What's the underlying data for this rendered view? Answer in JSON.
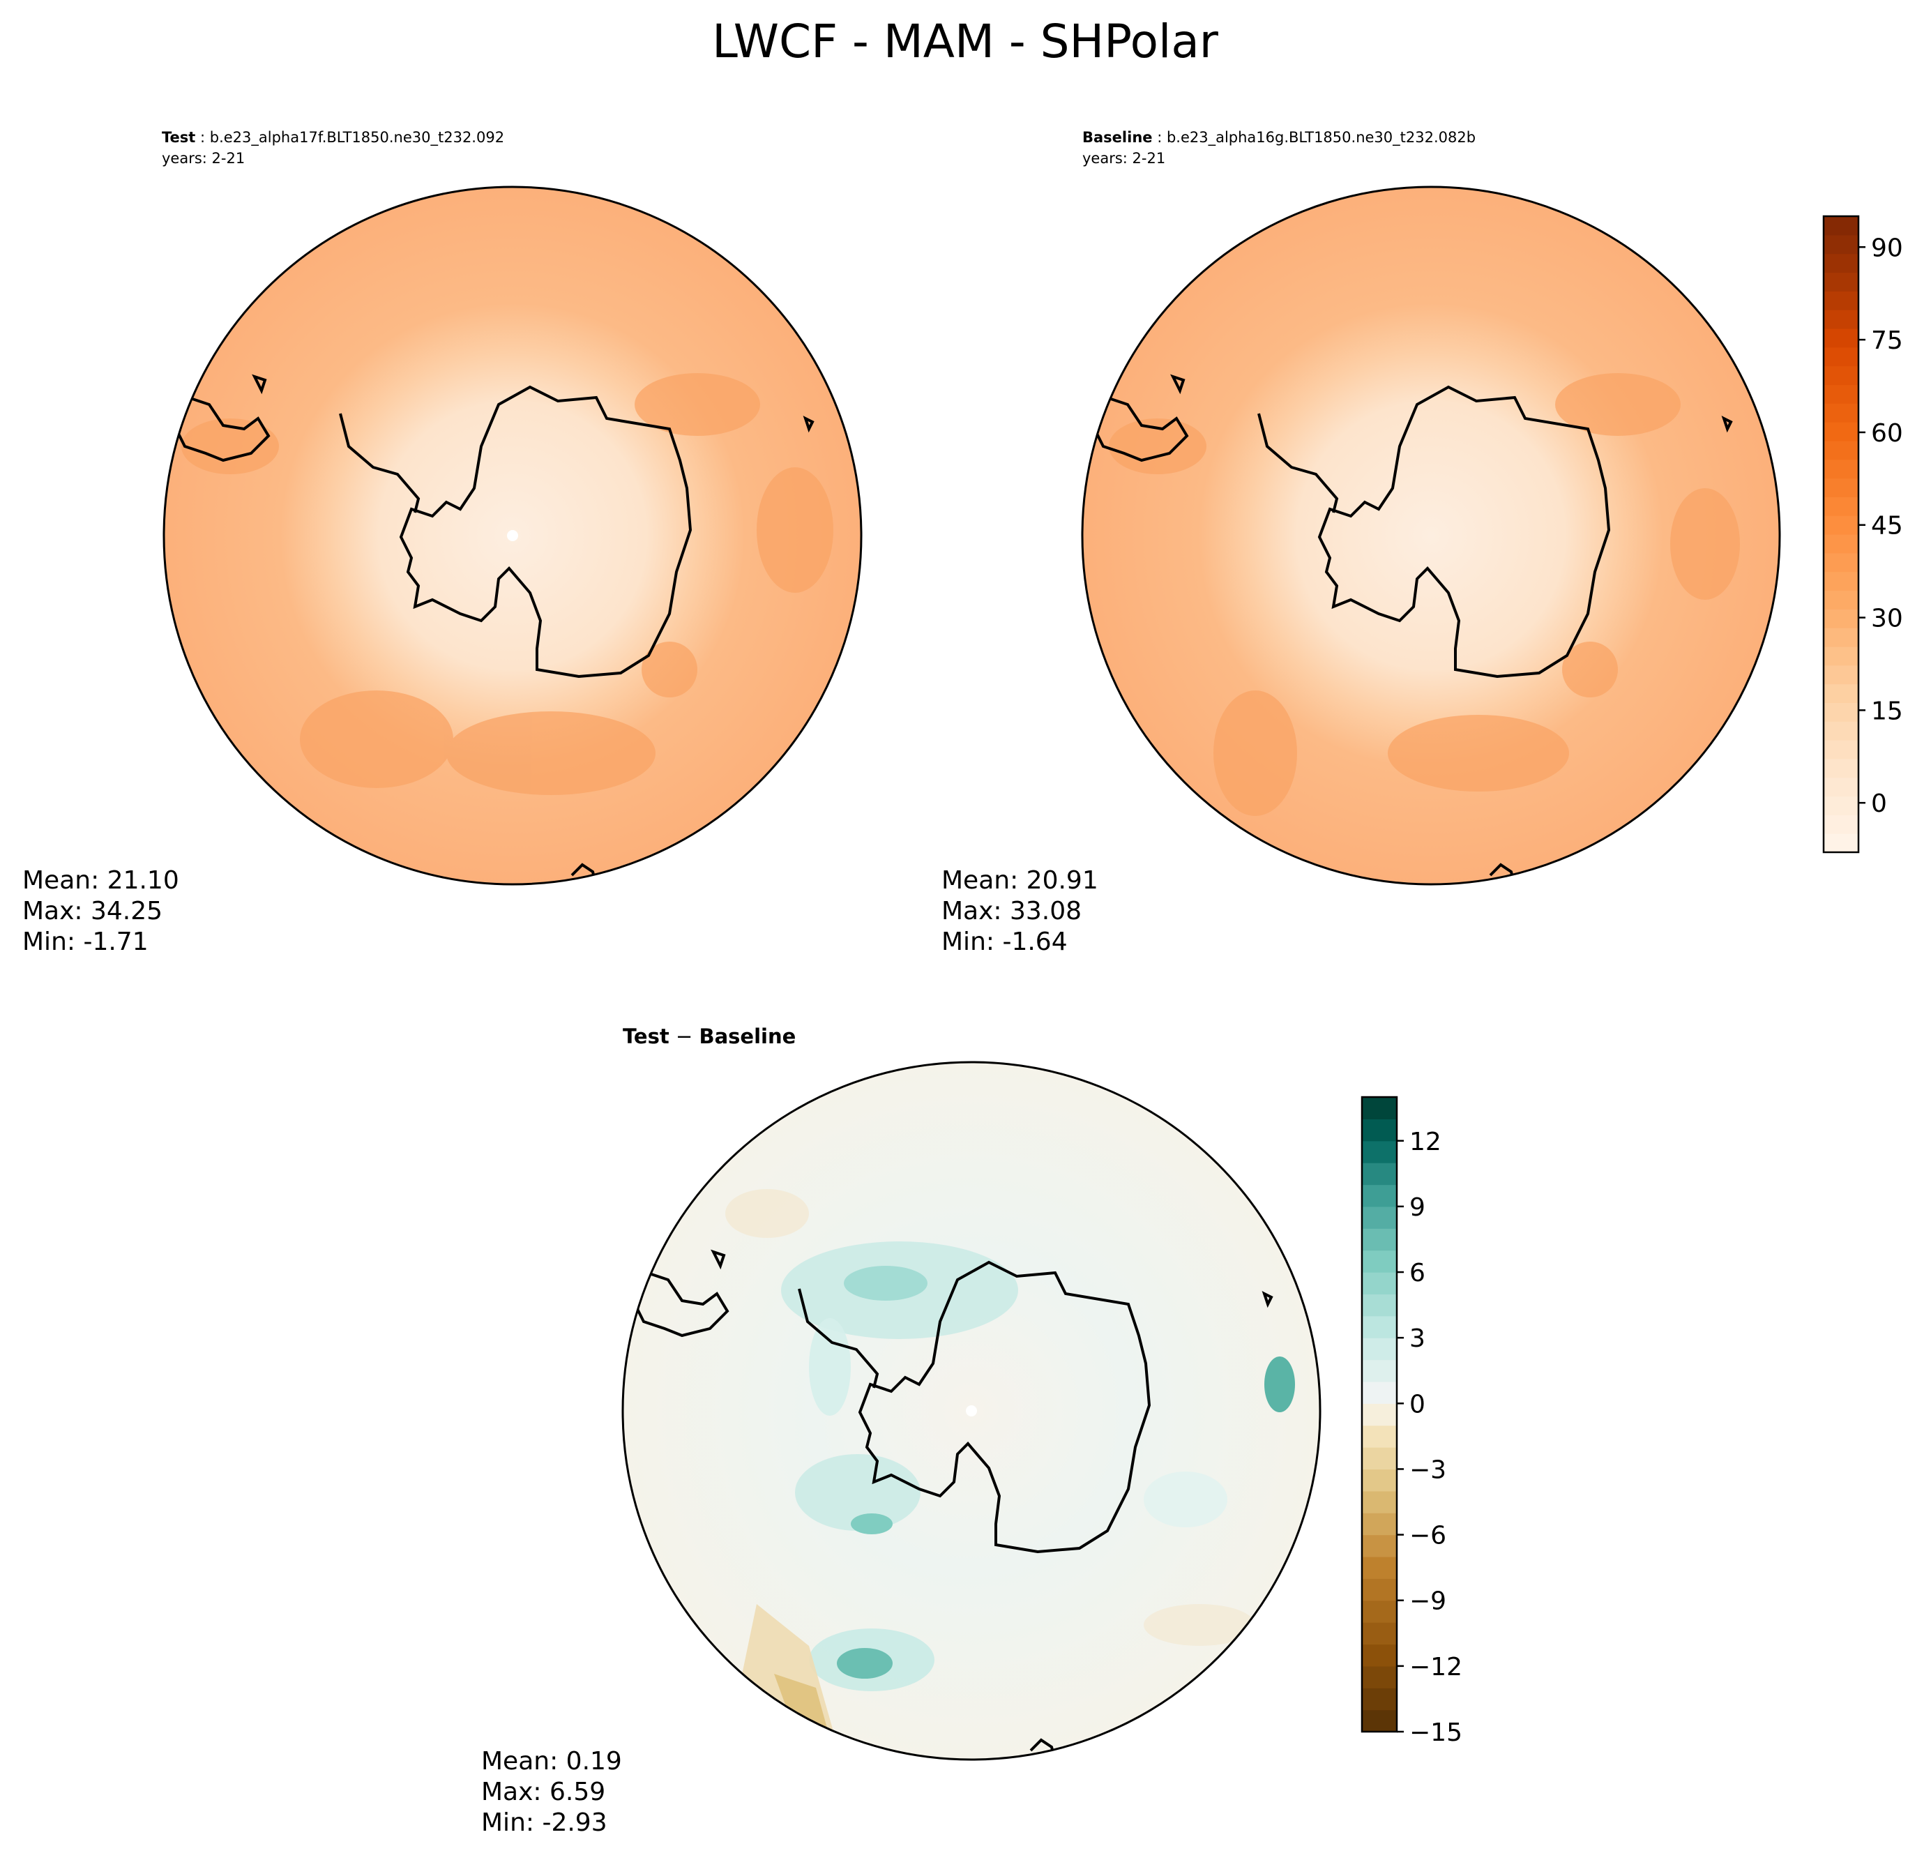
{
  "figure_title": "LWCF - MAM - SHPolar",
  "panels": {
    "test": {
      "label_bold": "Test",
      "case_name": " : b.e23_alpha17f.BLT1850.ne30_t232.092",
      "years": "years: 2-21",
      "mean": "Mean: 21.10",
      "max": "Max: 34.25",
      "min": "Min: -1.71"
    },
    "baseline": {
      "label_bold": "Baseline",
      "case_name": " : b.e23_alpha16g.BLT1850.ne30_t232.082b",
      "years": "years: 2-21",
      "mean": "Mean: 20.91",
      "max": "Max: 33.08",
      "min": "Min: -1.64"
    },
    "diff": {
      "title_left": "Test",
      "title_op": " − ",
      "title_right": "Baseline",
      "mean": "Mean:  0.19",
      "max": "Max:  6.59",
      "min": "Min: -2.93"
    }
  },
  "colors": {
    "oranges_low": "#fff5eb",
    "oranges_high": "#7f2704",
    "brbg_low": "#543005",
    "brbg_mid": "#f5f5f5",
    "brbg_high": "#003c30"
  },
  "chart_data": [
    {
      "type": "heatmap",
      "title": "Test : b.e23_alpha17f.BLT1850.ne30_t232.092",
      "projection": "south polar stereographic",
      "stats": {
        "mean": 21.1,
        "max": 34.25,
        "min": -1.71
      },
      "colorbar": "shared"
    },
    {
      "type": "heatmap",
      "title": "Baseline : b.e23_alpha16g.BLT1850.ne30_t232.082b",
      "projection": "south polar stereographic",
      "stats": {
        "mean": 20.91,
        "max": 33.08,
        "min": -1.64
      },
      "colorbar": {
        "colormap": "Oranges",
        "range": [
          -8,
          95
        ],
        "ticks": [
          "0",
          "15",
          "30",
          "45",
          "60",
          "75",
          "90"
        ]
      }
    },
    {
      "type": "heatmap",
      "title": "Test − Baseline",
      "projection": "south polar stereographic",
      "stats": {
        "mean": 0.19,
        "max": 6.59,
        "min": -2.93
      },
      "colorbar": {
        "colormap": "BrBG",
        "range": [
          -15,
          14
        ],
        "ticks": [
          "−15",
          "−12",
          "−9",
          "−6",
          "−3",
          "0",
          "3",
          "6",
          "9",
          "12"
        ]
      }
    }
  ]
}
